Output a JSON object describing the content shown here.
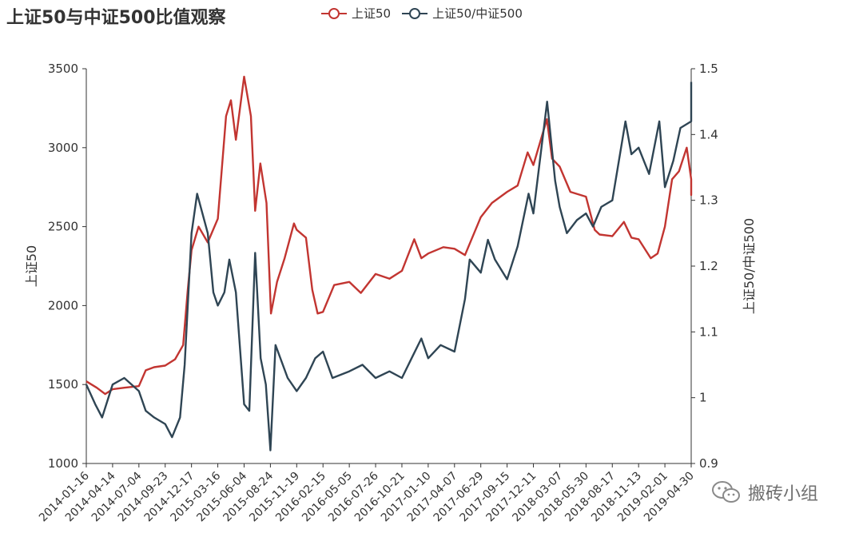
{
  "chart_data": {
    "type": "line",
    "title": "上证50与中证500比值观察",
    "series": [
      {
        "name": "上证50",
        "color": "#c23531",
        "axis": "left"
      },
      {
        "name": "上证50/中证500",
        "color": "#2f4554",
        "axis": "right"
      }
    ],
    "y_left": {
      "label": "上证50",
      "min": 1000,
      "max": 3500,
      "ticks": [
        1000,
        1500,
        2000,
        2500,
        3000,
        3500
      ]
    },
    "y_right": {
      "label": "上证50/中证500",
      "min": 0.9,
      "max": 1.5,
      "ticks": [
        "0.9",
        "1",
        "1.1",
        "1.2",
        "1.3",
        "1.4",
        "1.5"
      ]
    },
    "x_ticks": [
      "2014-01-16",
      "2014-04-14",
      "2014-07-04",
      "2014-09-23",
      "2014-12-17",
      "2015-03-16",
      "2015-06-04",
      "2015-08-24",
      "2015-11-19",
      "2016-02-15",
      "2016-05-05",
      "2016-07-26",
      "2016-10-21",
      "2017-01-10",
      "2017-04-07",
      "2017-06-29",
      "2017-09-15",
      "2017-12-11",
      "2018-03-07",
      "2018-05-30",
      "2018-08-17",
      "2018-11-13",
      "2019-02-01",
      "2019-04-30"
    ],
    "sse50_points": [
      [
        "2014-01-16",
        1520
      ],
      [
        "2014-02-20",
        1480
      ],
      [
        "2014-03-20",
        1440
      ],
      [
        "2014-04-14",
        1470
      ],
      [
        "2014-05-20",
        1480
      ],
      [
        "2014-07-04",
        1490
      ],
      [
        "2014-07-25",
        1590
      ],
      [
        "2014-08-20",
        1610
      ],
      [
        "2014-09-23",
        1620
      ],
      [
        "2014-10-25",
        1660
      ],
      [
        "2014-11-20",
        1750
      ],
      [
        "2014-12-05",
        2100
      ],
      [
        "2014-12-17",
        2350
      ],
      [
        "2015-01-10",
        2500
      ],
      [
        "2015-02-10",
        2400
      ],
      [
        "2015-03-16",
        2550
      ],
      [
        "2015-04-10",
        3200
      ],
      [
        "2015-04-25",
        3300
      ],
      [
        "2015-05-10",
        3050
      ],
      [
        "2015-06-04",
        3450
      ],
      [
        "2015-06-25",
        3200
      ],
      [
        "2015-07-08",
        2600
      ],
      [
        "2015-07-24",
        2900
      ],
      [
        "2015-08-12",
        2650
      ],
      [
        "2015-08-26",
        1950
      ],
      [
        "2015-09-15",
        2150
      ],
      [
        "2015-10-10",
        2300
      ],
      [
        "2015-11-10",
        2520
      ],
      [
        "2015-11-19",
        2480
      ],
      [
        "2015-12-20",
        2430
      ],
      [
        "2016-01-10",
        2100
      ],
      [
        "2016-01-28",
        1950
      ],
      [
        "2016-02-15",
        1960
      ],
      [
        "2016-03-20",
        2130
      ],
      [
        "2016-05-05",
        2150
      ],
      [
        "2016-06-10",
        2080
      ],
      [
        "2016-07-26",
        2200
      ],
      [
        "2016-09-10",
        2170
      ],
      [
        "2016-10-21",
        2220
      ],
      [
        "2016-11-28",
        2420
      ],
      [
        "2016-12-20",
        2300
      ],
      [
        "2017-01-10",
        2330
      ],
      [
        "2017-03-01",
        2370
      ],
      [
        "2017-04-07",
        2360
      ],
      [
        "2017-05-10",
        2320
      ],
      [
        "2017-06-29",
        2560
      ],
      [
        "2017-08-01",
        2650
      ],
      [
        "2017-09-15",
        2720
      ],
      [
        "2017-10-20",
        2760
      ],
      [
        "2017-11-22",
        2970
      ],
      [
        "2017-12-11",
        2890
      ],
      [
        "2018-01-24",
        3180
      ],
      [
        "2018-02-10",
        2930
      ],
      [
        "2018-03-07",
        2880
      ],
      [
        "2018-04-10",
        2720
      ],
      [
        "2018-05-30",
        2690
      ],
      [
        "2018-06-25",
        2480
      ],
      [
        "2018-07-10",
        2450
      ],
      [
        "2018-08-17",
        2440
      ],
      [
        "2018-09-25",
        2530
      ],
      [
        "2018-10-20",
        2430
      ],
      [
        "2018-11-13",
        2420
      ],
      [
        "2018-12-20",
        2300
      ],
      [
        "2019-01-10",
        2330
      ],
      [
        "2019-02-01",
        2500
      ],
      [
        "2019-02-25",
        2800
      ],
      [
        "2019-03-20",
        2850
      ],
      [
        "2019-04-15",
        3000
      ],
      [
        "2019-04-30",
        2800
      ],
      [
        "2019-05-20",
        2700
      ],
      [
        "2019-06-20",
        2800
      ]
    ],
    "ratio_points": [
      [
        "2014-01-16",
        1.02
      ],
      [
        "2014-02-15",
        0.99
      ],
      [
        "2014-03-10",
        0.97
      ],
      [
        "2014-04-14",
        1.02
      ],
      [
        "2014-05-20",
        1.03
      ],
      [
        "2014-07-04",
        1.01
      ],
      [
        "2014-07-25",
        0.98
      ],
      [
        "2014-08-20",
        0.97
      ],
      [
        "2014-09-23",
        0.96
      ],
      [
        "2014-10-15",
        0.94
      ],
      [
        "2014-11-10",
        0.97
      ],
      [
        "2014-11-25",
        1.05
      ],
      [
        "2014-12-17",
        1.25
      ],
      [
        "2015-01-05",
        1.31
      ],
      [
        "2015-02-10",
        1.25
      ],
      [
        "2015-03-01",
        1.16
      ],
      [
        "2015-03-16",
        1.14
      ],
      [
        "2015-04-05",
        1.16
      ],
      [
        "2015-04-20",
        1.21
      ],
      [
        "2015-05-10",
        1.16
      ],
      [
        "2015-06-04",
        0.99
      ],
      [
        "2015-06-20",
        0.98
      ],
      [
        "2015-07-08",
        1.22
      ],
      [
        "2015-07-25",
        1.06
      ],
      [
        "2015-08-10",
        1.02
      ],
      [
        "2015-08-24",
        0.92
      ],
      [
        "2015-09-10",
        1.08
      ],
      [
        "2015-10-20",
        1.03
      ],
      [
        "2015-11-19",
        1.01
      ],
      [
        "2015-12-20",
        1.03
      ],
      [
        "2016-01-20",
        1.06
      ],
      [
        "2016-02-15",
        1.07
      ],
      [
        "2016-03-15",
        1.03
      ],
      [
        "2016-05-05",
        1.04
      ],
      [
        "2016-06-15",
        1.05
      ],
      [
        "2016-07-26",
        1.03
      ],
      [
        "2016-09-10",
        1.04
      ],
      [
        "2016-10-21",
        1.03
      ],
      [
        "2016-11-20",
        1.06
      ],
      [
        "2016-12-20",
        1.09
      ],
      [
        "2017-01-10",
        1.06
      ],
      [
        "2017-02-20",
        1.08
      ],
      [
        "2017-04-07",
        1.07
      ],
      [
        "2017-05-10",
        1.15
      ],
      [
        "2017-05-25",
        1.21
      ],
      [
        "2017-06-29",
        1.19
      ],
      [
        "2017-07-20",
        1.24
      ],
      [
        "2017-08-10",
        1.21
      ],
      [
        "2017-09-15",
        1.18
      ],
      [
        "2017-10-20",
        1.23
      ],
      [
        "2017-11-25",
        1.31
      ],
      [
        "2017-12-11",
        1.28
      ],
      [
        "2018-01-25",
        1.45
      ],
      [
        "2018-02-20",
        1.33
      ],
      [
        "2018-03-07",
        1.29
      ],
      [
        "2018-03-30",
        1.25
      ],
      [
        "2018-05-01",
        1.27
      ],
      [
        "2018-05-30",
        1.28
      ],
      [
        "2018-06-20",
        1.26
      ],
      [
        "2018-07-15",
        1.29
      ],
      [
        "2018-08-17",
        1.3
      ],
      [
        "2018-09-30",
        1.42
      ],
      [
        "2018-10-20",
        1.37
      ],
      [
        "2018-11-13",
        1.38
      ],
      [
        "2018-12-15",
        1.34
      ],
      [
        "2019-01-15",
        1.42
      ],
      [
        "2019-02-01",
        1.32
      ],
      [
        "2019-03-01",
        1.36
      ],
      [
        "2019-03-25",
        1.41
      ],
      [
        "2019-04-30",
        1.42
      ],
      [
        "2019-05-20",
        1.42
      ],
      [
        "2019-06-20",
        1.48
      ]
    ]
  },
  "watermark": {
    "text": "搬砖小组"
  }
}
